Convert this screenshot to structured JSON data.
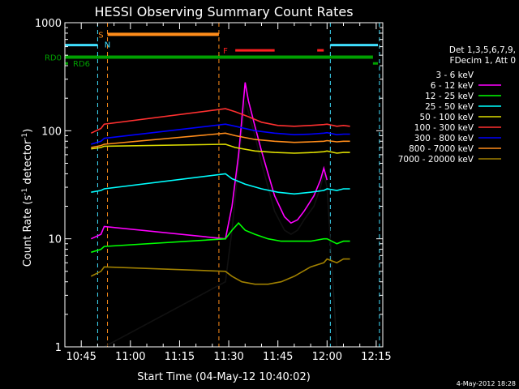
{
  "chart_data": {
    "type": "line",
    "title": "HESSI Observing Summary Count Rates",
    "xlabel": "Start Time (04-May-12 10:40:02)",
    "ylabel_main": "Count Rate (s",
    "ylabel_sup1": "-1",
    "ylabel_mid": " detector",
    "ylabel_sup2": "-1",
    "ylabel_end": ")",
    "ylabel": "Count Rate (s^-1 detector^-1)",
    "yscale": "log",
    "ylim": [
      1,
      1000
    ],
    "xlim": [
      "10:40",
      "12:17"
    ],
    "x_ticks": [
      "10:45",
      "11:00",
      "11:15",
      "11:30",
      "11:45",
      "12:00",
      "12:15"
    ],
    "y_ticks": [
      "1",
      "10",
      "100",
      "1000"
    ],
    "legend_header_1": "Det 1,3,5,6,7,9,",
    "legend_header_2": "FDecim 1, Att 0",
    "timestamp": "4-May-2012 18:28",
    "flags": [
      {
        "label": "RD0",
        "color": "#00a000"
      },
      {
        "label": "RD6",
        "color": "#00a000"
      },
      {
        "label": "S",
        "color": "#ff8c1a"
      },
      {
        "label": "N",
        "color": "#40e0ff"
      },
      {
        "label": "F",
        "color": "#ff2020"
      }
    ],
    "series": [
      {
        "name": "3 - 6 keV",
        "color": "#000000",
        "points": [
          [
            "10:48",
            1
          ],
          [
            "10:51",
            1
          ],
          [
            "10:52",
            1
          ],
          [
            "11:29",
            4
          ],
          [
            "11:31",
            12
          ],
          [
            "11:33",
            50
          ],
          [
            "11:35",
            190
          ],
          [
            "11:36",
            150
          ],
          [
            "11:38",
            90
          ],
          [
            "11:40",
            50
          ],
          [
            "11:42",
            30
          ],
          [
            "11:44",
            18
          ],
          [
            "11:47",
            12
          ],
          [
            "11:49",
            11
          ],
          [
            "11:51",
            12
          ],
          [
            "11:53",
            15
          ],
          [
            "11:56",
            20
          ],
          [
            "11:58",
            30
          ],
          [
            "11:59",
            40
          ],
          [
            "12:00",
            30
          ],
          [
            "12:03",
            1
          ],
          [
            "12:05",
            1
          ],
          [
            "12:07",
            1
          ]
        ]
      },
      {
        "name": "6 - 12 keV",
        "color": "#ff00ff",
        "points": [
          [
            "10:48",
            10
          ],
          [
            "10:51",
            11
          ],
          [
            "10:52",
            13
          ],
          [
            "11:29",
            10
          ],
          [
            "11:31",
            20
          ],
          [
            "11:33",
            60
          ],
          [
            "11:35",
            280
          ],
          [
            "11:36",
            190
          ],
          [
            "11:38",
            110
          ],
          [
            "11:40",
            65
          ],
          [
            "11:42",
            40
          ],
          [
            "11:44",
            25
          ],
          [
            "11:47",
            16
          ],
          [
            "11:49",
            14
          ],
          [
            "11:51",
            15
          ],
          [
            "11:53",
            18
          ],
          [
            "11:56",
            25
          ],
          [
            "11:58",
            35
          ],
          [
            "11:59",
            45
          ],
          [
            "12:00",
            35
          ]
        ]
      },
      {
        "name": "12 - 25 keV",
        "color": "#00ff00",
        "points": [
          [
            "10:48",
            7.5
          ],
          [
            "10:51",
            8
          ],
          [
            "10:52",
            8.5
          ],
          [
            "11:29",
            10
          ],
          [
            "11:31",
            12
          ],
          [
            "11:33",
            14
          ],
          [
            "11:35",
            12
          ],
          [
            "11:38",
            11
          ],
          [
            "11:42",
            10
          ],
          [
            "11:46",
            9.5
          ],
          [
            "11:50",
            9.5
          ],
          [
            "11:55",
            9.5
          ],
          [
            "11:59",
            10
          ],
          [
            "12:00",
            10
          ],
          [
            "12:03",
            9
          ],
          [
            "12:05",
            9.5
          ],
          [
            "12:07",
            9.5
          ]
        ]
      },
      {
        "name": "25 - 50 keV",
        "color": "#00ffff",
        "points": [
          [
            "10:48",
            27
          ],
          [
            "10:51",
            28
          ],
          [
            "10:52",
            29
          ],
          [
            "11:29",
            40
          ],
          [
            "11:31",
            36
          ],
          [
            "11:35",
            32
          ],
          [
            "11:40",
            29
          ],
          [
            "11:45",
            27
          ],
          [
            "11:50",
            26
          ],
          [
            "11:55",
            27
          ],
          [
            "11:59",
            28
          ],
          [
            "12:00",
            29
          ],
          [
            "12:03",
            28
          ],
          [
            "12:05",
            29
          ],
          [
            "12:07",
            29
          ]
        ]
      },
      {
        "name": "50 - 100 keV",
        "color": "#dddd00",
        "points": [
          [
            "10:48",
            68
          ],
          [
            "10:51",
            70
          ],
          [
            "10:52",
            72
          ],
          [
            "11:29",
            75
          ],
          [
            "11:32",
            70
          ],
          [
            "11:38",
            65
          ],
          [
            "11:44",
            63
          ],
          [
            "11:50",
            62
          ],
          [
            "11:56",
            63
          ],
          [
            "11:59",
            64
          ],
          [
            "12:00",
            65
          ],
          [
            "12:03",
            62
          ],
          [
            "12:05",
            63
          ],
          [
            "12:07",
            63
          ]
        ]
      },
      {
        "name": "100 - 300 keV",
        "color": "#ff3030",
        "points": [
          [
            "10:48",
            95
          ],
          [
            "10:51",
            105
          ],
          [
            "10:52",
            115
          ],
          [
            "11:29",
            160
          ],
          [
            "11:32",
            150
          ],
          [
            "11:36",
            135
          ],
          [
            "11:40",
            120
          ],
          [
            "11:45",
            112
          ],
          [
            "11:50",
            110
          ],
          [
            "11:55",
            112
          ],
          [
            "11:59",
            114
          ],
          [
            "12:00",
            115
          ],
          [
            "12:03",
            110
          ],
          [
            "12:05",
            112
          ],
          [
            "12:07",
            110
          ]
        ]
      },
      {
        "name": "300 - 800 keV",
        "color": "#0000ff",
        "points": [
          [
            "10:48",
            75
          ],
          [
            "10:51",
            80
          ],
          [
            "10:52",
            85
          ],
          [
            "11:29",
            115
          ],
          [
            "11:32",
            110
          ],
          [
            "11:38",
            100
          ],
          [
            "11:44",
            95
          ],
          [
            "11:50",
            92
          ],
          [
            "11:55",
            93
          ],
          [
            "11:59",
            95
          ],
          [
            "12:00",
            96
          ],
          [
            "12:03",
            92
          ],
          [
            "12:05",
            93
          ],
          [
            "12:07",
            93
          ]
        ]
      },
      {
        "name": "800 - 7000 keV",
        "color": "#ff8c1a",
        "points": [
          [
            "10:48",
            70
          ],
          [
            "10:51",
            73
          ],
          [
            "10:52",
            75
          ],
          [
            "11:29",
            95
          ],
          [
            "11:32",
            90
          ],
          [
            "11:38",
            83
          ],
          [
            "11:44",
            80
          ],
          [
            "11:50",
            78
          ],
          [
            "11:55",
            79
          ],
          [
            "11:59",
            80
          ],
          [
            "12:00",
            81
          ],
          [
            "12:03",
            79
          ],
          [
            "12:05",
            80
          ],
          [
            "12:07",
            80
          ]
        ]
      },
      {
        "name": "7000 - 20000 keV",
        "color": "#a08000",
        "points": [
          [
            "10:48",
            4.5
          ],
          [
            "10:51",
            5
          ],
          [
            "10:52",
            5.5
          ],
          [
            "11:29",
            5
          ],
          [
            "11:31",
            4.5
          ],
          [
            "11:34",
            4
          ],
          [
            "11:38",
            3.8
          ],
          [
            "11:42",
            3.8
          ],
          [
            "11:46",
            4
          ],
          [
            "11:50",
            4.5
          ],
          [
            "11:55",
            5.5
          ],
          [
            "11:59",
            6
          ],
          [
            "12:00",
            6.5
          ],
          [
            "12:03",
            6
          ],
          [
            "12:05",
            6.5
          ],
          [
            "12:07",
            6.5
          ]
        ]
      }
    ]
  }
}
